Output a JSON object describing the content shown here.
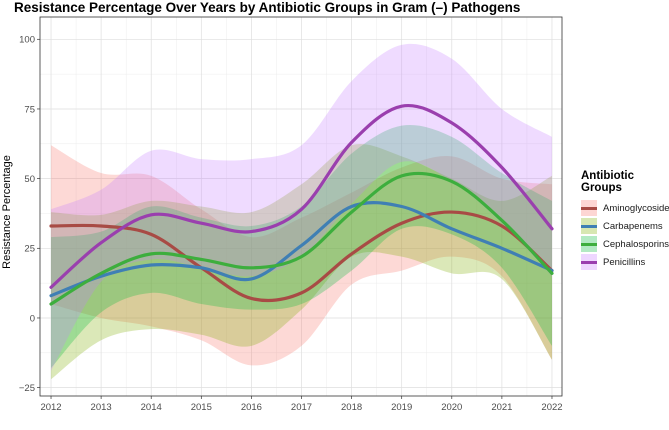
{
  "chart_data": {
    "type": "line",
    "title": "Resistance Percentage Over Years by Antibiotic Groups in Gram (–) Pathogens",
    "xlabel": "",
    "ylabel": "Resistance Percentage",
    "x": [
      2012,
      2013,
      2014,
      2015,
      2016,
      2017,
      2018,
      2019,
      2020,
      2021,
      2022
    ],
    "xlim": [
      2011.78,
      2022.2
    ],
    "ylim": [
      -28,
      108
    ],
    "yticks": [
      -25,
      0,
      25,
      50,
      75,
      100
    ],
    "legend_title": "Antibiotic Groups",
    "legend_position": "right",
    "series": [
      {
        "name": "Aminoglycosides",
        "color": "#F8766D",
        "line_color": "#A84B45",
        "values": [
          33,
          33,
          30,
          18,
          7,
          9,
          23,
          34,
          38,
          33,
          17
        ],
        "lower": [
          5,
          0,
          -3,
          -8,
          -17,
          -10,
          12,
          17,
          22,
          15,
          -15
        ],
        "upper": [
          62,
          52,
          51,
          39,
          29,
          36,
          45,
          54,
          58,
          50,
          48
        ]
      },
      {
        "name": "Carbapenems",
        "color": "#7CAE00",
        "color_note": "placeholder",
        "line_color": "#3F7FB4",
        "values": [
          8,
          15,
          19,
          18,
          14,
          26,
          40,
          40,
          32,
          25,
          17
        ],
        "lower": [
          -22,
          -8,
          -4,
          -6,
          -10,
          3,
          22,
          22,
          16,
          14,
          -15
        ],
        "upper": [
          38,
          37,
          42,
          40,
          38,
          48,
          62,
          58,
          50,
          42,
          51
        ]
      },
      {
        "name": "Cephalosporins",
        "color": "#00BA38",
        "line_color": "#3DAE3D",
        "values": [
          5,
          16,
          23,
          21,
          18,
          22,
          38,
          51,
          49,
          35,
          16
        ],
        "lower": [
          -18,
          2,
          9,
          5,
          3,
          5,
          17,
          32,
          30,
          18,
          -10
        ],
        "upper": [
          29,
          31,
          40,
          36,
          33,
          40,
          59,
          69,
          65,
          52,
          42
        ]
      },
      {
        "name": "Penicillins",
        "color": "#C77CFF",
        "line_color": "#9A3FAE",
        "values": [
          11,
          27,
          37,
          34,
          31,
          39,
          63,
          76,
          70,
          54,
          32
        ],
        "lower": [
          -19,
          13,
          21,
          18,
          15,
          22,
          41,
          56,
          49,
          34,
          15
        ],
        "upper": [
          39,
          46,
          60,
          57,
          57,
          62,
          85,
          98,
          93,
          75,
          65
        ]
      }
    ]
  }
}
